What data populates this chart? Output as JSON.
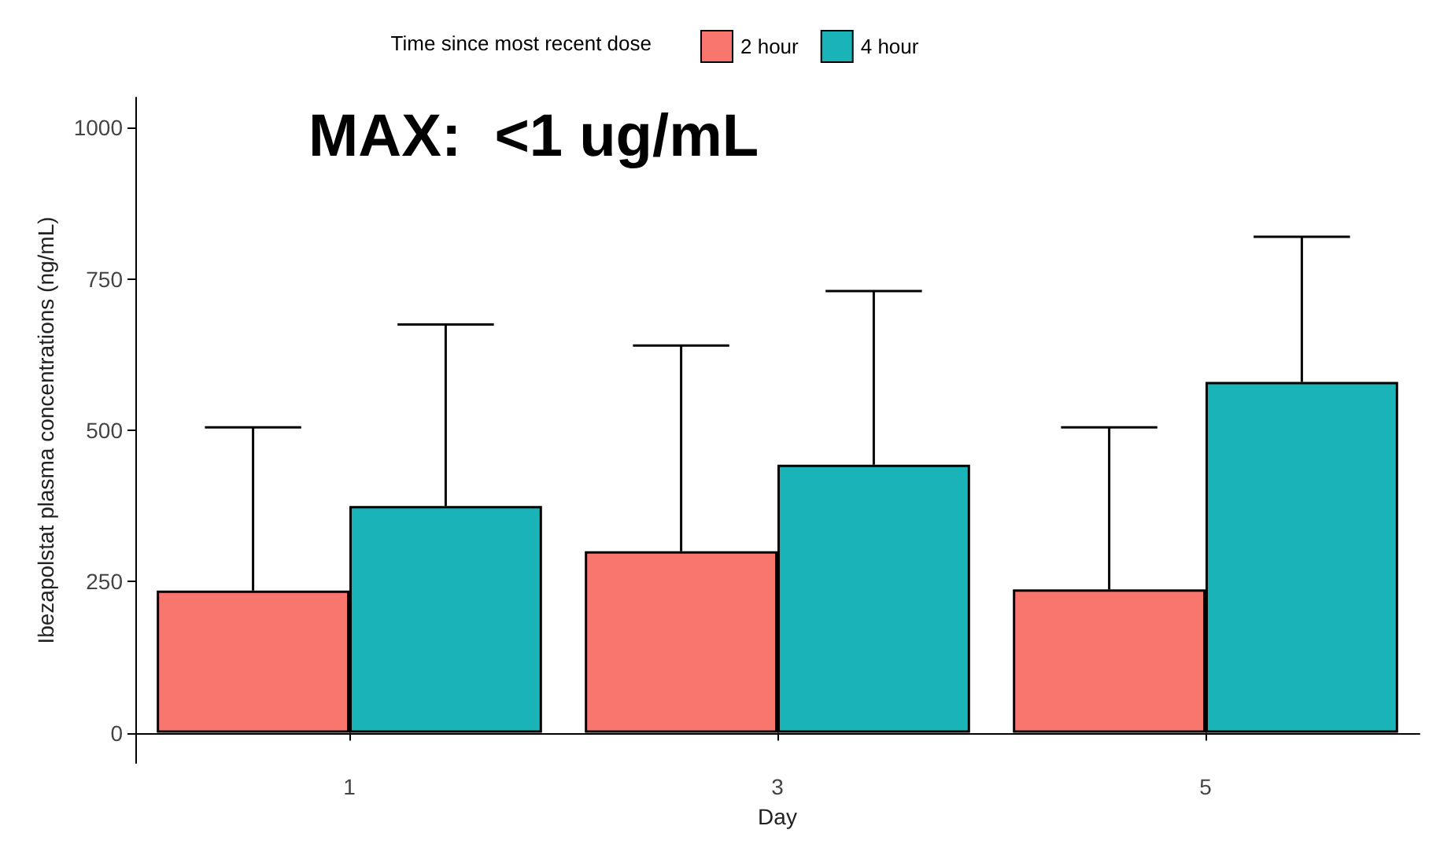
{
  "chart_data": {
    "type": "bar",
    "xlabel": "Day",
    "ylabel": "Ibezapolstat plasma concentrations (ng/mL)",
    "legend_title": "Time since most recent dose",
    "annotations": [
      "MAX:  <1 ug/mL"
    ],
    "categories": [
      "1",
      "3",
      "5"
    ],
    "series": [
      {
        "name": "2 hour",
        "color": "#f8766d",
        "values": [
          235,
          300,
          237
        ],
        "errors": [
          [
            235,
            505
          ],
          [
            300,
            640
          ],
          [
            237,
            505
          ]
        ]
      },
      {
        "name": "4 hour",
        "color": "#19b3b8",
        "values": [
          375,
          443,
          580
        ],
        "errors": [
          [
            375,
            675
          ],
          [
            443,
            730
          ],
          [
            580,
            820
          ]
        ]
      }
    ],
    "ylim": [
      -50,
      1050
    ],
    "yticks": [
      0,
      250,
      500,
      750,
      1000
    ],
    "grid": false,
    "legend": "top"
  }
}
